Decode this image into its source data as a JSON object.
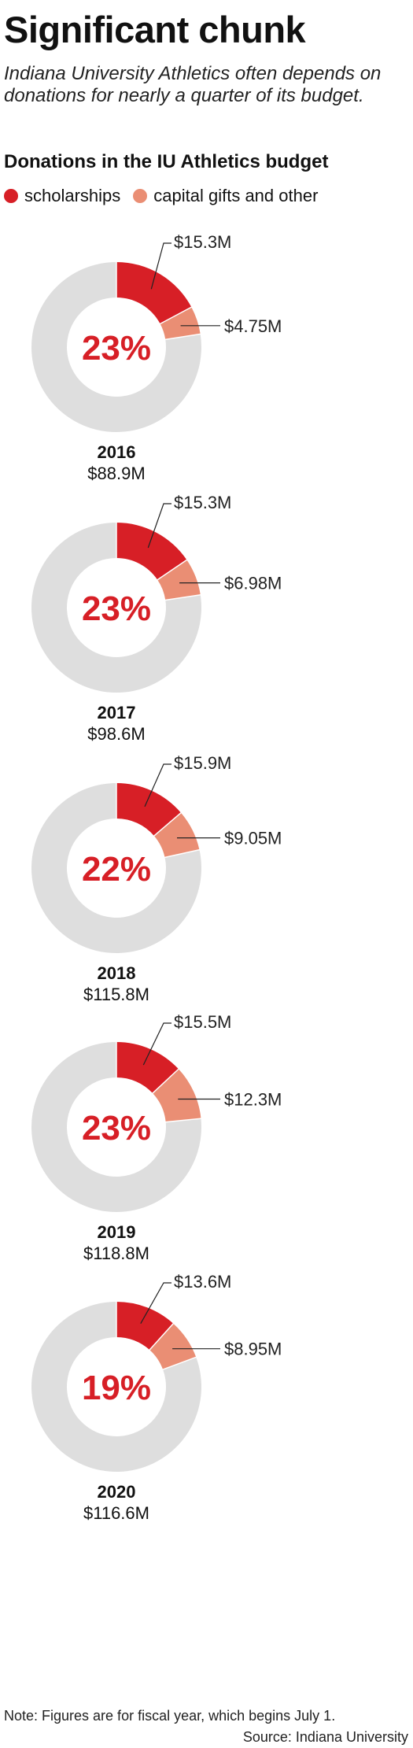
{
  "header": {
    "title": "Significant chunk",
    "subtitle": "Indiana University Athletics often depends on donations for nearly a quarter of its budget."
  },
  "colors": {
    "scholarships": "#d71f26",
    "capital": "#ea8e74",
    "remainder": "#dedede",
    "pct_text": "#d71f26"
  },
  "chart_data": {
    "type": "pie",
    "title": "Donations in the IU Athletics budget",
    "legend": [
      "scholarships",
      "capital gifts and other"
    ],
    "legend_position": "top-left",
    "units": "$M",
    "charts": [
      {
        "year": "2016",
        "total": 88.9,
        "total_label": "$88.9M",
        "pct_label": "23%",
        "scholarships": 15.3,
        "scholarships_label": "$15.3M",
        "capital": 4.75,
        "capital_label": "$4.75M"
      },
      {
        "year": "2017",
        "total": 98.6,
        "total_label": "$98.6M",
        "pct_label": "23%",
        "scholarships": 15.3,
        "scholarships_label": "$15.3M",
        "capital": 6.98,
        "capital_label": "$6.98M"
      },
      {
        "year": "2018",
        "total": 115.8,
        "total_label": "$115.8M",
        "pct_label": "22%",
        "scholarships": 15.9,
        "scholarships_label": "$15.9M",
        "capital": 9.05,
        "capital_label": "$9.05M"
      },
      {
        "year": "2019",
        "total": 118.8,
        "total_label": "$118.8M",
        "pct_label": "23%",
        "scholarships": 15.5,
        "scholarships_label": "$15.5M",
        "capital": 12.3,
        "capital_label": "$12.3M"
      },
      {
        "year": "2020",
        "total": 116.6,
        "total_label": "$116.6M",
        "pct_label": "19%",
        "scholarships": 13.6,
        "scholarships_label": "$13.6M",
        "capital": 8.95,
        "capital_label": "$8.95M"
      }
    ]
  },
  "footer": {
    "note": "Note: Figures are for fiscal year, which begins July 1.",
    "source": "Source: Indiana University"
  }
}
